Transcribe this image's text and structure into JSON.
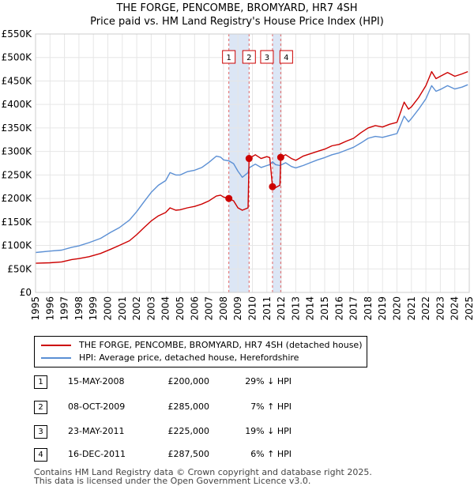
{
  "chart_data": {
    "type": "line",
    "title": "THE FORGE, PENCOMBE, BROMYARD, HR7 4SH",
    "subtitle": "Price paid vs. HM Land Registry's House Price Index (HPI)",
    "xlabel": "",
    "ylabel": "",
    "xlim": [
      1995,
      2025
    ],
    "ylim": [
      0,
      550000
    ],
    "x_ticks": [
      "1995",
      "1996",
      "1997",
      "1998",
      "1999",
      "2000",
      "2001",
      "2002",
      "2003",
      "2004",
      "2005",
      "2006",
      "2007",
      "2008",
      "2009",
      "2010",
      "2011",
      "2012",
      "2013",
      "2014",
      "2015",
      "2016",
      "2017",
      "2018",
      "2019",
      "2020",
      "2021",
      "2022",
      "2023",
      "2024",
      "2025"
    ],
    "y_ticks": [
      "£0",
      "£50K",
      "£100K",
      "£150K",
      "£200K",
      "£250K",
      "£300K",
      "£350K",
      "£400K",
      "£450K",
      "£500K",
      "£550K"
    ],
    "grid": true,
    "series": [
      {
        "name": "THE FORGE, PENCOMBE, BROMYARD, HR7 4SH (detached house)",
        "color": "#cc0000",
        "points": [
          [
            1995.0,
            62000
          ],
          [
            1996.0,
            63000
          ],
          [
            1996.8,
            65000
          ],
          [
            1997.5,
            70000
          ],
          [
            1998.0,
            72000
          ],
          [
            1998.7,
            76000
          ],
          [
            1999.5,
            83000
          ],
          [
            2000.2,
            92000
          ],
          [
            2000.8,
            100000
          ],
          [
            2001.5,
            110000
          ],
          [
            2002.0,
            123000
          ],
          [
            2002.5,
            138000
          ],
          [
            2003.0,
            152000
          ],
          [
            2003.5,
            163000
          ],
          [
            2004.0,
            170000
          ],
          [
            2004.3,
            180000
          ],
          [
            2004.7,
            175000
          ],
          [
            2005.0,
            176000
          ],
          [
            2005.5,
            180000
          ],
          [
            2006.0,
            183000
          ],
          [
            2006.5,
            188000
          ],
          [
            2007.0,
            195000
          ],
          [
            2007.5,
            205000
          ],
          [
            2007.8,
            207000
          ],
          [
            2008.0,
            203000
          ],
          [
            2008.37,
            200000
          ],
          [
            2008.7,
            195000
          ],
          [
            2009.0,
            180000
          ],
          [
            2009.3,
            175000
          ],
          [
            2009.7,
            180000
          ],
          [
            2009.77,
            285000
          ],
          [
            2010.2,
            293000
          ],
          [
            2010.6,
            285000
          ],
          [
            2011.0,
            289000
          ],
          [
            2011.2,
            287000
          ],
          [
            2011.39,
            225000
          ],
          [
            2011.6,
            223000
          ],
          [
            2011.9,
            228000
          ],
          [
            2011.96,
            287500
          ],
          [
            2012.3,
            293000
          ],
          [
            2012.7,
            285000
          ],
          [
            2013.0,
            281000
          ],
          [
            2013.5,
            290000
          ],
          [
            2014.0,
            295000
          ],
          [
            2014.5,
            300000
          ],
          [
            2015.0,
            305000
          ],
          [
            2015.5,
            312000
          ],
          [
            2016.0,
            315000
          ],
          [
            2016.5,
            322000
          ],
          [
            2017.0,
            328000
          ],
          [
            2017.5,
            340000
          ],
          [
            2018.0,
            350000
          ],
          [
            2018.5,
            355000
          ],
          [
            2019.0,
            352000
          ],
          [
            2019.5,
            358000
          ],
          [
            2020.0,
            362000
          ],
          [
            2020.5,
            405000
          ],
          [
            2020.8,
            390000
          ],
          [
            2021.0,
            395000
          ],
          [
            2021.5,
            415000
          ],
          [
            2022.0,
            440000
          ],
          [
            2022.4,
            470000
          ],
          [
            2022.7,
            455000
          ],
          [
            2023.0,
            460000
          ],
          [
            2023.5,
            468000
          ],
          [
            2024.0,
            460000
          ],
          [
            2024.5,
            465000
          ],
          [
            2024.9,
            470000
          ]
        ]
      },
      {
        "name": "HPI: Average price, detached house, Herefordshire",
        "color": "#5b8fd4",
        "points": [
          [
            1995.0,
            85000
          ],
          [
            1996.0,
            88000
          ],
          [
            1996.8,
            90000
          ],
          [
            1997.5,
            96000
          ],
          [
            1998.0,
            99000
          ],
          [
            1998.7,
            106000
          ],
          [
            1999.5,
            115000
          ],
          [
            2000.2,
            128000
          ],
          [
            2000.8,
            138000
          ],
          [
            2001.5,
            154000
          ],
          [
            2002.0,
            172000
          ],
          [
            2002.5,
            193000
          ],
          [
            2003.0,
            213000
          ],
          [
            2003.5,
            228000
          ],
          [
            2004.0,
            238000
          ],
          [
            2004.3,
            255000
          ],
          [
            2004.7,
            250000
          ],
          [
            2005.0,
            250000
          ],
          [
            2005.5,
            257000
          ],
          [
            2006.0,
            260000
          ],
          [
            2006.5,
            266000
          ],
          [
            2007.0,
            277000
          ],
          [
            2007.5,
            290000
          ],
          [
            2007.8,
            288000
          ],
          [
            2008.0,
            282000
          ],
          [
            2008.37,
            280000
          ],
          [
            2008.7,
            274000
          ],
          [
            2009.0,
            258000
          ],
          [
            2009.3,
            245000
          ],
          [
            2009.7,
            255000
          ],
          [
            2009.77,
            265000
          ],
          [
            2010.2,
            273000
          ],
          [
            2010.6,
            266000
          ],
          [
            2011.0,
            270000
          ],
          [
            2011.2,
            272000
          ],
          [
            2011.39,
            278000
          ],
          [
            2011.6,
            272000
          ],
          [
            2011.9,
            270000
          ],
          [
            2011.96,
            271000
          ],
          [
            2012.3,
            276000
          ],
          [
            2012.7,
            268000
          ],
          [
            2013.0,
            265000
          ],
          [
            2013.5,
            270000
          ],
          [
            2014.0,
            276000
          ],
          [
            2014.5,
            282000
          ],
          [
            2015.0,
            287000
          ],
          [
            2015.5,
            293000
          ],
          [
            2016.0,
            297000
          ],
          [
            2016.5,
            303000
          ],
          [
            2017.0,
            309000
          ],
          [
            2017.5,
            318000
          ],
          [
            2018.0,
            328000
          ],
          [
            2018.5,
            332000
          ],
          [
            2019.0,
            330000
          ],
          [
            2019.5,
            334000
          ],
          [
            2020.0,
            338000
          ],
          [
            2020.5,
            375000
          ],
          [
            2020.8,
            363000
          ],
          [
            2021.0,
            370000
          ],
          [
            2021.5,
            390000
          ],
          [
            2022.0,
            412000
          ],
          [
            2022.4,
            440000
          ],
          [
            2022.7,
            428000
          ],
          [
            2023.0,
            432000
          ],
          [
            2023.5,
            440000
          ],
          [
            2024.0,
            433000
          ],
          [
            2024.5,
            437000
          ],
          [
            2024.9,
            442000
          ]
        ]
      }
    ],
    "sales": [
      {
        "label": "1",
        "x": 2008.37,
        "y": 200000
      },
      {
        "label": "2",
        "x": 2009.77,
        "y": 285000
      },
      {
        "label": "3",
        "x": 2011.39,
        "y": 225000
      },
      {
        "label": "4",
        "x": 2011.96,
        "y": 287500
      }
    ],
    "shaded_ranges": [
      [
        2008.37,
        2009.77
      ],
      [
        2011.39,
        2011.96
      ]
    ]
  },
  "legend": {
    "red_label": "THE FORGE, PENCOMBE, BROMYARD, HR7 4SH (detached house)",
    "blue_label": "HPI: Average price, detached house, Herefordshire"
  },
  "table": [
    {
      "num": "1",
      "date": "15-MAY-2008",
      "price": "£200,000",
      "delta": "29% ↓ HPI"
    },
    {
      "num": "2",
      "date": "08-OCT-2009",
      "price": "£285,000",
      "delta": "7% ↑ HPI"
    },
    {
      "num": "3",
      "date": "23-MAY-2011",
      "price": "£225,000",
      "delta": "19% ↓ HPI"
    },
    {
      "num": "4",
      "date": "16-DEC-2011",
      "price": "£287,500",
      "delta": "6% ↑ HPI"
    }
  ],
  "footer": {
    "line1": "Contains HM Land Registry data © Crown copyright and database right 2025.",
    "line2": "This data is licensed under the Open Government Licence v3.0."
  }
}
